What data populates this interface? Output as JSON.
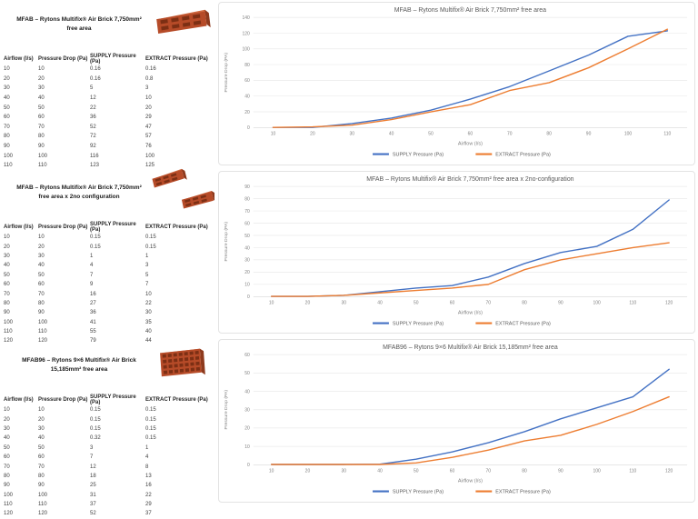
{
  "colors": {
    "supply_line": "#4472C4",
    "extract_line": "#ED7D31",
    "supply_table": "#2E9AD8",
    "extract_table": "#ED7D31",
    "chart_title": "#595959",
    "axis_text": "#808080",
    "gridline": "#EAEAEA",
    "axis_line": "#D6D6D6",
    "brick_front": "#B64B28",
    "brick_top": "#CE6A42",
    "brick_side": "#8E3A1D",
    "brick_hole": "#7C2F14"
  },
  "sections": [
    {
      "title": "MFAB – Rytons Multifix® Air Brick 7,750mm² free area",
      "brick_icon": "single-air-brick",
      "headers": [
        "Airflow (l/s)",
        "Pressure Drop (Pa)",
        "SUPPLY Pressure (Pa)",
        "EXTRACT Pressure (Pa)"
      ],
      "rows": [
        [
          "10",
          "10",
          "0.16",
          "0.16"
        ],
        [
          "20",
          "20",
          "0.16",
          "0.8"
        ],
        [
          "30",
          "30",
          "5",
          "3"
        ],
        [
          "40",
          "40",
          "12",
          "10"
        ],
        [
          "50",
          "50",
          "22",
          "20"
        ],
        [
          "60",
          "60",
          "36",
          "29"
        ],
        [
          "70",
          "70",
          "52",
          "47"
        ],
        [
          "80",
          "80",
          "72",
          "57"
        ],
        [
          "90",
          "90",
          "92",
          "76"
        ],
        [
          "100",
          "100",
          "116",
          "100"
        ],
        [
          "110",
          "110",
          "123",
          "125"
        ]
      ]
    },
    {
      "title": "MFAB – Rytons Multifix® Air Brick 7,750mm² free area x 2no configuration",
      "brick_icon": "double-air-brick",
      "headers": [
        "Airflow (l/s)",
        "Pressure Drop (Pa)",
        "SUPPLY Pressure (Pa)",
        "EXTRACT Pressure (Pa)"
      ],
      "rows": [
        [
          "10",
          "10",
          "0.15",
          "0.15"
        ],
        [
          "20",
          "20",
          "0.15",
          "0.15"
        ],
        [
          "30",
          "30",
          "1",
          "1"
        ],
        [
          "40",
          "40",
          "4",
          "3"
        ],
        [
          "50",
          "50",
          "7",
          "5"
        ],
        [
          "60",
          "60",
          "9",
          "7"
        ],
        [
          "70",
          "70",
          "16",
          "10"
        ],
        [
          "80",
          "80",
          "27",
          "22"
        ],
        [
          "90",
          "90",
          "36",
          "30"
        ],
        [
          "100",
          "100",
          "41",
          "35"
        ],
        [
          "110",
          "110",
          "55",
          "40"
        ],
        [
          "120",
          "120",
          "79",
          "44"
        ]
      ]
    },
    {
      "title": "MFAB96 – Rytons 9×6 Multifix® Air Brick 15,185mm² free area",
      "brick_icon": "grid-air-brick",
      "headers": [
        "Airflow (l/s)",
        "Pressure Drop (Pa)",
        "SUPPLY Pressure (Pa)",
        "EXTRACT Pressure (Pa)"
      ],
      "rows": [
        [
          "10",
          "10",
          "0.15",
          "0.15"
        ],
        [
          "20",
          "20",
          "0.15",
          "0.15"
        ],
        [
          "30",
          "30",
          "0.15",
          "0.15"
        ],
        [
          "40",
          "40",
          "0.32",
          "0.15"
        ],
        [
          "50",
          "50",
          "3",
          "1"
        ],
        [
          "60",
          "60",
          "7",
          "4"
        ],
        [
          "70",
          "70",
          "12",
          "8"
        ],
        [
          "80",
          "80",
          "18",
          "13"
        ],
        [
          "90",
          "90",
          "25",
          "16"
        ],
        [
          "100",
          "100",
          "31",
          "22"
        ],
        [
          "110",
          "110",
          "37",
          "29"
        ],
        [
          "120",
          "120",
          "52",
          "37"
        ]
      ]
    }
  ],
  "chart_data": [
    {
      "type": "line",
      "title": "MFAB – Rytons Multifix® Air Brick 7,750mm² free area",
      "x": [
        10,
        20,
        30,
        40,
        50,
        60,
        70,
        80,
        90,
        100,
        110
      ],
      "series": [
        {
          "name": "SUPPLY Pressure (Pa)",
          "color": "#4472C4",
          "values": [
            0.16,
            0.16,
            5,
            12,
            22,
            36,
            52,
            72,
            92,
            116,
            123
          ]
        },
        {
          "name": "EXTRACT Pressure (Pa)",
          "color": "#ED7D31",
          "values": [
            0.16,
            0.8,
            3,
            10,
            20,
            29,
            47,
            57,
            76,
            100,
            125
          ]
        }
      ],
      "xlabel": "Airflow (l/s)",
      "ylabel": "Pressure Drop (PA)",
      "ylim": [
        0,
        140
      ],
      "ytick_step": 20,
      "grid": true,
      "legend_position": "bottom"
    },
    {
      "type": "line",
      "title": "MFAB – Rytons Multifix® Air Brick 7,750mm² free area x 2no-configuration",
      "x": [
        10,
        20,
        30,
        40,
        50,
        60,
        70,
        80,
        90,
        100,
        110,
        120
      ],
      "series": [
        {
          "name": "SUPPLY Pressure (Pa)",
          "color": "#4472C4",
          "values": [
            0.15,
            0.15,
            1,
            4,
            7,
            9,
            16,
            27,
            36,
            41,
            55,
            79
          ]
        },
        {
          "name": "EXTRACT Pressure (Pa)",
          "color": "#ED7D31",
          "values": [
            0.15,
            0.15,
            1,
            3,
            5,
            7,
            10,
            22,
            30,
            35,
            40,
            44
          ]
        }
      ],
      "xlabel": "Airflow (l/s)",
      "ylabel": "Pressure Drop (PA)",
      "ylim": [
        0,
        90
      ],
      "ytick_step": 10,
      "grid": true,
      "legend_position": "bottom"
    },
    {
      "type": "line",
      "title": "MFAB96 – Rytons 9×6 Multifix® Air Brick 15,185mm² free area",
      "x": [
        10,
        20,
        30,
        40,
        50,
        60,
        70,
        80,
        90,
        100,
        110,
        120
      ],
      "series": [
        {
          "name": "SUPPLY Pressure (Pa)",
          "color": "#4472C4",
          "values": [
            0.15,
            0.15,
            0.15,
            0.32,
            3,
            7,
            12,
            18,
            25,
            31,
            37,
            52
          ]
        },
        {
          "name": "EXTRACT Pressure (Pa)",
          "color": "#ED7D31",
          "values": [
            0.15,
            0.15,
            0.15,
            0.15,
            1,
            4,
            8,
            13,
            16,
            22,
            29,
            37
          ]
        }
      ],
      "xlabel": "Airflow (l/s)",
      "ylabel": "Pressure Drop (PA)",
      "ylim": [
        0,
        60
      ],
      "ytick_step": 10,
      "grid": true,
      "legend_position": "bottom"
    }
  ]
}
